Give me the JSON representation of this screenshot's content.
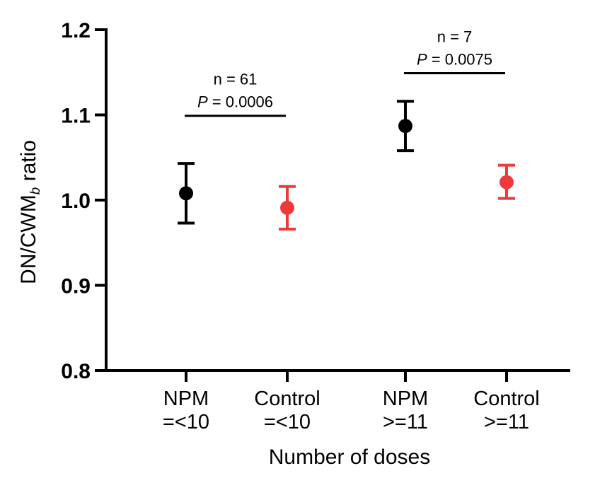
{
  "chart_data": {
    "type": "scatter",
    "title": "",
    "xlabel": "Number of doses",
    "ylabel": {
      "main": "DN/CWM",
      "subscript": "b",
      "suffix": " ratio"
    },
    "ylim": [
      0.8,
      1.2
    ],
    "yticks": [
      "0.8",
      "0.9",
      "1.0",
      "1.1",
      "1.2"
    ],
    "categories": [
      {
        "line1": "NPM",
        "line2": "=<10"
      },
      {
        "line1": "Control",
        "line2": "=<10"
      },
      {
        "line1": "NPM",
        "line2": ">=11"
      },
      {
        "line1": "Control",
        "line2": ">=11"
      }
    ],
    "points": [
      {
        "category": 0,
        "mean": 1.008,
        "lower": 0.973,
        "upper": 1.043,
        "color": "#000000"
      },
      {
        "category": 1,
        "mean": 0.991,
        "lower": 0.966,
        "upper": 1.016,
        "color": "#f0393a"
      },
      {
        "category": 2,
        "mean": 1.087,
        "lower": 1.058,
        "upper": 1.116,
        "color": "#000000"
      },
      {
        "category": 3,
        "mean": 1.021,
        "lower": 1.002,
        "upper": 1.041,
        "color": "#f0393a"
      }
    ],
    "annotations": [
      {
        "from": 0,
        "to": 1,
        "y": 1.099,
        "n_text": "n = 61",
        "p_label": "P",
        "p_text": " = 0.0006"
      },
      {
        "from": 2,
        "to": 3,
        "y": 1.149,
        "n_text": "n = 7",
        "p_label": "P",
        "p_text": " = 0.0075"
      }
    ]
  }
}
